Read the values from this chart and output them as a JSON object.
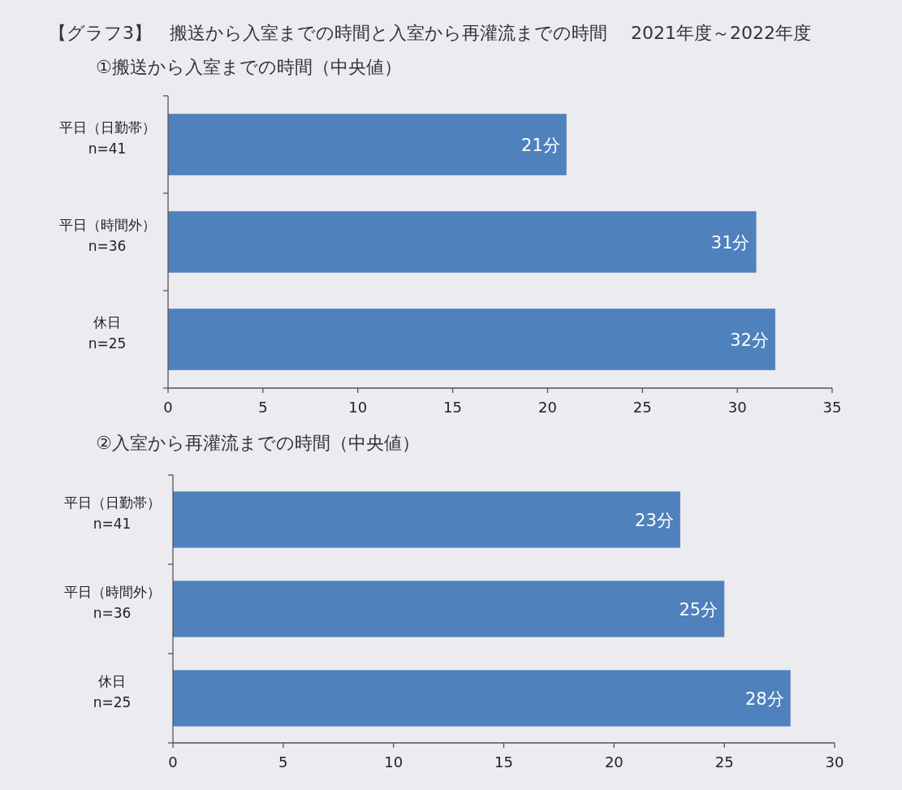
{
  "chart_data": [
    {
      "type": "bar",
      "orientation": "horizontal",
      "title": "【グラフ3】　搬送から入室までの時間と入室から再灌流までの時間　 2021年度～2022年度",
      "subtitle": "①搬送から入室までの時間（中央値）",
      "categories": [
        "平日（日勤帯）\nn=41",
        "平日（時間外）\nn=36",
        "休日\nn=25"
      ],
      "values": [
        21,
        31,
        32
      ],
      "value_labels": [
        "21分",
        "31分",
        "32分"
      ],
      "color": "#4f81bd",
      "xlim": [
        0,
        35
      ],
      "xticks": [
        0,
        5,
        10,
        15,
        20,
        25,
        30,
        35
      ]
    },
    {
      "type": "bar",
      "orientation": "horizontal",
      "title": "②入室から再灌流までの時間（中央値）",
      "categories": [
        "平日（日勤帯）\nn=41",
        "平日（時間外）\nn=36",
        "休日\nn=25"
      ],
      "values": [
        23,
        25,
        28
      ],
      "value_labels": [
        "23分",
        "25分",
        "28分"
      ],
      "color": "#4f81bd",
      "xlim": [
        0,
        30
      ],
      "xticks": [
        0,
        5,
        10,
        15,
        20,
        25,
        30
      ]
    }
  ]
}
